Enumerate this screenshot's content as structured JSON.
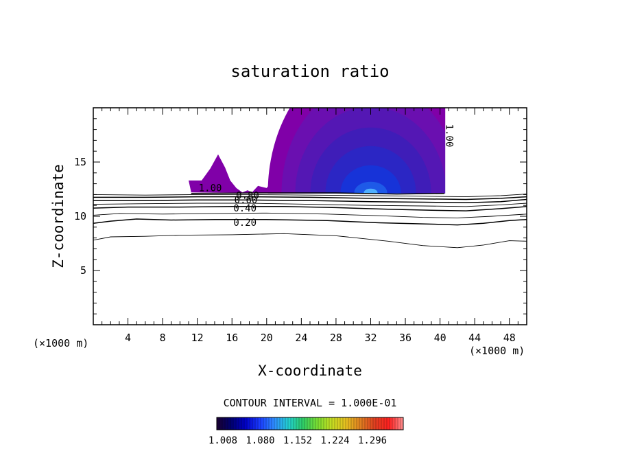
{
  "chart_data": {
    "type": "contour",
    "title": "saturation ratio",
    "xlabel": "X-coordinate",
    "ylabel": "Z-coordinate",
    "x_unit_left": "(×1000 m)",
    "x_unit_right": "(×1000 m)",
    "xlim": [
      0,
      50
    ],
    "ylim": [
      0,
      20
    ],
    "x_ticks": [
      4,
      8,
      12,
      16,
      20,
      24,
      28,
      32,
      36,
      40,
      44,
      48
    ],
    "y_ticks": [
      5,
      10,
      15
    ],
    "contour_interval_text": "CONTOUR INTERVAL = 1.000E-01",
    "contour_lines": [
      {
        "label": "0.20",
        "points": [
          [
            0,
            9.35
          ],
          [
            2,
            9.55
          ],
          [
            5,
            9.75
          ],
          [
            9,
            9.65
          ],
          [
            14,
            9.7
          ],
          [
            20,
            9.7
          ],
          [
            27,
            9.6
          ],
          [
            33,
            9.4
          ],
          [
            38,
            9.3
          ],
          [
            42,
            9.2
          ],
          [
            45,
            9.35
          ],
          [
            48,
            9.6
          ],
          [
            50,
            9.7
          ]
        ]
      },
      {
        "label": "",
        "points": [
          [
            0,
            7.8
          ],
          [
            2,
            8.1
          ],
          [
            6,
            8.15
          ],
          [
            10,
            8.25
          ],
          [
            16,
            8.3
          ],
          [
            22,
            8.4
          ],
          [
            28,
            8.2
          ],
          [
            34,
            7.7
          ],
          [
            38,
            7.3
          ],
          [
            42,
            7.1
          ],
          [
            45,
            7.35
          ],
          [
            48,
            7.75
          ],
          [
            50,
            7.7
          ]
        ]
      },
      {
        "label": "",
        "points": [
          [
            0,
            10.1
          ],
          [
            3,
            10.25
          ],
          [
            8,
            10.2
          ],
          [
            14,
            10.25
          ],
          [
            20,
            10.3
          ],
          [
            27,
            10.2
          ],
          [
            33,
            10.05
          ],
          [
            38,
            9.9
          ],
          [
            42,
            9.85
          ],
          [
            46,
            10.0
          ],
          [
            50,
            10.2
          ]
        ]
      },
      {
        "label": "0.40",
        "points": [
          [
            0,
            10.75
          ],
          [
            4,
            10.85
          ],
          [
            10,
            10.85
          ],
          [
            16,
            10.9
          ],
          [
            22,
            10.9
          ],
          [
            28,
            10.8
          ],
          [
            34,
            10.65
          ],
          [
            39,
            10.55
          ],
          [
            43,
            10.5
          ],
          [
            47,
            10.7
          ],
          [
            50,
            10.9
          ]
        ]
      },
      {
        "label": "",
        "points": [
          [
            0,
            11.1
          ],
          [
            5,
            11.15
          ],
          [
            12,
            11.2
          ],
          [
            18,
            11.2
          ],
          [
            25,
            11.1
          ],
          [
            32,
            11.0
          ],
          [
            38,
            10.95
          ],
          [
            43,
            10.9
          ],
          [
            47,
            11.05
          ],
          [
            50,
            11.2
          ]
        ]
      },
      {
        "label": "0.60",
        "points": [
          [
            0,
            11.45
          ],
          [
            6,
            11.45
          ],
          [
            12,
            11.5
          ],
          [
            18,
            11.5
          ],
          [
            25,
            11.45
          ],
          [
            32,
            11.35
          ],
          [
            38,
            11.3
          ],
          [
            43,
            11.25
          ],
          [
            47,
            11.35
          ],
          [
            50,
            11.55
          ]
        ]
      },
      {
        "label": "0.80",
        "points": [
          [
            0,
            11.75
          ],
          [
            6,
            11.75
          ],
          [
            12,
            11.8
          ],
          [
            18,
            11.8
          ],
          [
            25,
            11.75
          ],
          [
            32,
            11.65
          ],
          [
            38,
            11.6
          ],
          [
            43,
            11.55
          ],
          [
            47,
            11.65
          ],
          [
            50,
            11.8
          ]
        ]
      },
      {
        "label": "",
        "points": [
          [
            0,
            12.0
          ],
          [
            6,
            11.95
          ],
          [
            12,
            12.0
          ],
          [
            18,
            12.0
          ],
          [
            25,
            11.95
          ],
          [
            32,
            11.9
          ],
          [
            38,
            11.85
          ],
          [
            43,
            11.8
          ],
          [
            47,
            11.9
          ],
          [
            50,
            12.05
          ]
        ]
      },
      {
        "label": "1.00",
        "points": [
          [
            11.3,
            12.1
          ],
          [
            20,
            12.15
          ],
          [
            28,
            12.15
          ],
          [
            35,
            12.05
          ],
          [
            40.5,
            12.1
          ]
        ]
      }
    ],
    "filled_region": {
      "x_range": [
        11,
        41
      ],
      "z_range": [
        12.1,
        20
      ],
      "core_center": [
        32,
        12.3
      ],
      "colors": [
        "#8000a8",
        "#6a0fb0",
        "#5417b4",
        "#3f1db8",
        "#2b26c4",
        "#1733d8",
        "#1e5ae8",
        "#4fb0ff"
      ]
    },
    "colorbar": {
      "colors": [
        "#1a0030",
        "#000070",
        "#0000c8",
        "#1a3cff",
        "#2e8cff",
        "#22d0d0",
        "#2ecc66",
        "#77dd33",
        "#c4dd22",
        "#e6c020",
        "#e08020",
        "#e04020",
        "#ff2020",
        "#ff9090"
      ],
      "labels": [
        "1.008",
        "1.080",
        "1.152",
        "1.224",
        "1.296"
      ]
    },
    "grid": false
  }
}
